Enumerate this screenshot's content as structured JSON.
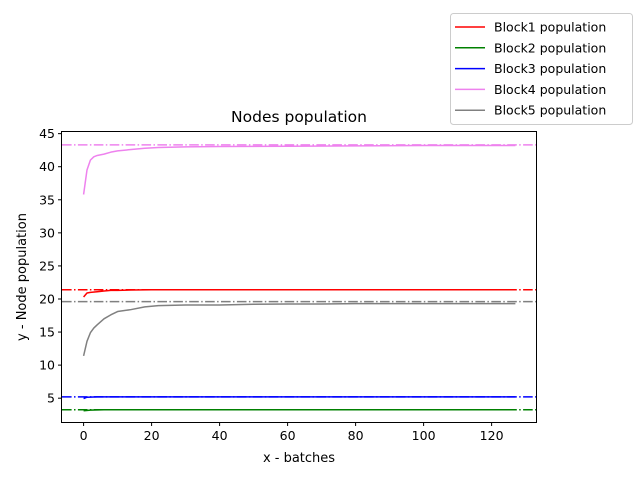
{
  "chart_data": {
    "type": "line",
    "title": "Nodes population",
    "xlabel": "x - batches",
    "ylabel": "y - Node population",
    "xlim": [
      -6.35,
      133.35
    ],
    "ylim": [
      1.4,
      45.4
    ],
    "xticks": [
      0,
      20,
      40,
      60,
      80,
      100,
      120
    ],
    "yticks": [
      5,
      10,
      15,
      20,
      25,
      30,
      35,
      40,
      45
    ],
    "grid": false,
    "legend_position": "top-right, outside the plot area",
    "series": [
      {
        "name": "Block1 population",
        "color": "#ff0000",
        "x": [
          0,
          1,
          2,
          4,
          6,
          8,
          10,
          14,
          20,
          30,
          40,
          60,
          80,
          100,
          127
        ],
        "values": [
          20.3,
          20.9,
          21.0,
          21.1,
          21.2,
          21.3,
          21.3,
          21.35,
          21.4,
          21.4,
          21.4,
          21.4,
          21.4,
          21.4,
          21.4
        ],
        "reference_value": 21.4
      },
      {
        "name": "Block2 population",
        "color": "#008000",
        "x": [
          0,
          2,
          6,
          10,
          20,
          40,
          60,
          80,
          100,
          127
        ],
        "values": [
          3.1,
          3.2,
          3.25,
          3.25,
          3.25,
          3.25,
          3.25,
          3.25,
          3.25,
          3.25
        ],
        "reference_value": 3.25
      },
      {
        "name": "Block3 population",
        "color": "#0000ff",
        "x": [
          0,
          1,
          4,
          10,
          20,
          40,
          60,
          80,
          100,
          127
        ],
        "values": [
          4.95,
          5.15,
          5.2,
          5.2,
          5.2,
          5.2,
          5.2,
          5.2,
          5.2,
          5.2
        ],
        "reference_value": 5.2
      },
      {
        "name": "Block4 population",
        "color": "#ee82ee",
        "x": [
          0,
          1,
          2,
          3,
          4,
          6,
          8,
          10,
          14,
          18,
          22,
          30,
          40,
          60,
          80,
          100,
          127
        ],
        "values": [
          35.8,
          39.5,
          41.0,
          41.5,
          41.7,
          41.9,
          42.2,
          42.4,
          42.6,
          42.8,
          42.9,
          43.0,
          43.05,
          43.1,
          43.15,
          43.2,
          43.2
        ],
        "reference_value": 43.3
      },
      {
        "name": "Block5 population",
        "color": "#808080",
        "x": [
          0,
          1,
          2,
          3,
          4,
          6,
          8,
          10,
          14,
          18,
          22,
          30,
          40,
          50,
          60,
          70,
          80,
          90,
          100,
          127
        ],
        "values": [
          11.4,
          13.6,
          14.9,
          15.6,
          16.1,
          17.0,
          17.6,
          18.1,
          18.4,
          18.8,
          19.0,
          19.1,
          19.1,
          19.2,
          19.25,
          19.25,
          19.3,
          19.3,
          19.3,
          19.3
        ],
        "reference_value": 19.6
      }
    ]
  }
}
